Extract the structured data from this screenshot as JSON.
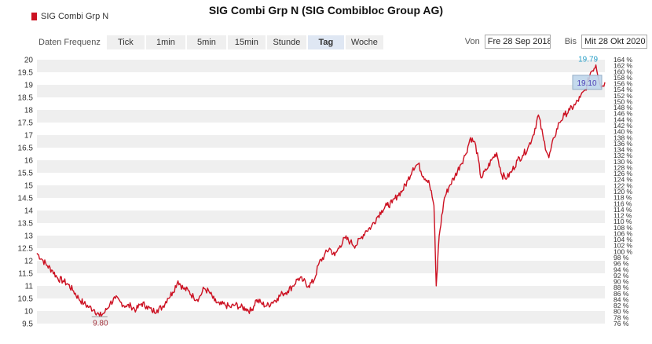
{
  "title": "SIG Combi Grp N (SIG Combibloc Group AG)",
  "legend": {
    "label": "SIG Combi Grp N",
    "color": "#cc1122"
  },
  "toolbar": {
    "freq_label": "Daten Frequenz",
    "buttons": [
      "Tick",
      "1min",
      "5min",
      "15min",
      "Stunde",
      "Tag",
      "Woche"
    ],
    "active": "Tag"
  },
  "range": {
    "from_label": "Von",
    "from": "Fre 28 Sep 2018",
    "to_label": "Bis",
    "to": "Mit 28 Okt 2020"
  },
  "chart_data": {
    "type": "line",
    "x_start": "2018-09-28",
    "x_end": "2020-10-28",
    "ylim": [
      9.5,
      20
    ],
    "y_ticks": [
      9.5,
      10,
      10.5,
      11,
      11.5,
      12,
      12.5,
      13,
      13.5,
      14,
      14.5,
      15,
      15.5,
      16,
      16.5,
      17,
      17.5,
      18,
      18.5,
      19,
      19.5,
      20
    ],
    "y2_ticks": [
      "76 %",
      "78 %",
      "80 %",
      "82 %",
      "84 %",
      "86 %",
      "88 %",
      "90 %",
      "92 %",
      "94 %",
      "96 %",
      "98 %",
      "100 %",
      "102 %",
      "104 %",
      "106 %",
      "108 %",
      "110 %",
      "112 %",
      "114 %",
      "116 %",
      "118 %",
      "120 %",
      "122 %",
      "124 %",
      "126 %",
      "128 %",
      "130 %",
      "132 %",
      "134 %",
      "136 %",
      "138 %",
      "140 %",
      "142 %",
      "144 %",
      "146 %",
      "148 %",
      "150 %",
      "152 %",
      "154 %",
      "156 %",
      "158 %",
      "160 %",
      "162 %",
      "164 %"
    ],
    "y2_lim": [
      76,
      164
    ],
    "grid": true,
    "series": [
      {
        "name": "SIG Combi Grp N",
        "color": "#cc1122",
        "points": [
          [
            "2018-09-28",
            12.3
          ],
          [
            "2018-10-05",
            12.05
          ],
          [
            "2018-10-12",
            11.8
          ],
          [
            "2018-10-19",
            11.6
          ],
          [
            "2018-10-26",
            11.3
          ],
          [
            "2018-11-02",
            11.2
          ],
          [
            "2018-11-09",
            11.05
          ],
          [
            "2018-11-16",
            10.8
          ],
          [
            "2018-11-23",
            10.5
          ],
          [
            "2018-11-30",
            10.3
          ],
          [
            "2018-12-07",
            10.15
          ],
          [
            "2018-12-14",
            10.05
          ],
          [
            "2018-12-21",
            9.8
          ],
          [
            "2018-12-28",
            9.95
          ],
          [
            "2019-01-04",
            10.3
          ],
          [
            "2019-01-11",
            10.5
          ],
          [
            "2019-01-18",
            10.35
          ],
          [
            "2019-01-25",
            10.2
          ],
          [
            "2019-02-01",
            10.2
          ],
          [
            "2019-02-08",
            10.05
          ],
          [
            "2019-02-15",
            10.3
          ],
          [
            "2019-02-22",
            10.2
          ],
          [
            "2019-03-01",
            10.0
          ],
          [
            "2019-03-08",
            10.05
          ],
          [
            "2019-03-15",
            10.15
          ],
          [
            "2019-03-22",
            10.5
          ],
          [
            "2019-03-29",
            10.75
          ],
          [
            "2019-04-05",
            11.2
          ],
          [
            "2019-04-12",
            10.9
          ],
          [
            "2019-04-19",
            10.8
          ],
          [
            "2019-04-26",
            10.55
          ],
          [
            "2019-05-03",
            10.5
          ],
          [
            "2019-05-10",
            10.9
          ],
          [
            "2019-05-17",
            10.75
          ],
          [
            "2019-05-24",
            10.4
          ],
          [
            "2019-05-31",
            10.25
          ],
          [
            "2019-06-07",
            10.25
          ],
          [
            "2019-06-14",
            10.15
          ],
          [
            "2019-06-21",
            10.25
          ],
          [
            "2019-06-28",
            10.15
          ],
          [
            "2019-07-05",
            10.1
          ],
          [
            "2019-07-12",
            10.0
          ],
          [
            "2019-07-19",
            10.45
          ],
          [
            "2019-07-26",
            10.3
          ],
          [
            "2019-08-02",
            10.2
          ],
          [
            "2019-08-09",
            10.35
          ],
          [
            "2019-08-16",
            10.5
          ],
          [
            "2019-08-23",
            10.7
          ],
          [
            "2019-08-30",
            10.8
          ],
          [
            "2019-09-06",
            11.0
          ],
          [
            "2019-09-13",
            11.3
          ],
          [
            "2019-09-20",
            11.2
          ],
          [
            "2019-09-27",
            11.0
          ],
          [
            "2019-10-04",
            11.2
          ],
          [
            "2019-10-11",
            11.9
          ],
          [
            "2019-10-18",
            12.2
          ],
          [
            "2019-10-25",
            12.5
          ],
          [
            "2019-11-01",
            12.2
          ],
          [
            "2019-11-08",
            12.6
          ],
          [
            "2019-11-15",
            12.9
          ],
          [
            "2019-11-22",
            12.75
          ],
          [
            "2019-11-29",
            12.6
          ],
          [
            "2019-12-06",
            12.9
          ],
          [
            "2019-12-13",
            13.2
          ],
          [
            "2019-12-20",
            13.35
          ],
          [
            "2019-12-27",
            13.7
          ],
          [
            "2020-01-03",
            14.0
          ],
          [
            "2020-01-10",
            14.2
          ],
          [
            "2020-01-17",
            14.3
          ],
          [
            "2020-01-24",
            14.6
          ],
          [
            "2020-01-31",
            14.8
          ],
          [
            "2020-02-07",
            15.2
          ],
          [
            "2020-02-14",
            15.7
          ],
          [
            "2020-02-21",
            15.85
          ],
          [
            "2020-02-28",
            15.35
          ],
          [
            "2020-03-06",
            15.2
          ],
          [
            "2020-03-13",
            14.2
          ],
          [
            "2020-03-16",
            11.0
          ],
          [
            "2020-03-20",
            13.0
          ],
          [
            "2020-03-27",
            14.5
          ],
          [
            "2020-04-03",
            15.0
          ],
          [
            "2020-04-10",
            15.35
          ],
          [
            "2020-04-17",
            15.8
          ],
          [
            "2020-04-24",
            16.2
          ],
          [
            "2020-05-01",
            16.9
          ],
          [
            "2020-05-08",
            16.6
          ],
          [
            "2020-05-15",
            15.3
          ],
          [
            "2020-05-22",
            15.6
          ],
          [
            "2020-05-29",
            16.0
          ],
          [
            "2020-06-05",
            16.3
          ],
          [
            "2020-06-12",
            15.4
          ],
          [
            "2020-06-19",
            15.3
          ],
          [
            "2020-06-26",
            15.6
          ],
          [
            "2020-07-03",
            16.0
          ],
          [
            "2020-07-10",
            16.2
          ],
          [
            "2020-07-17",
            16.5
          ],
          [
            "2020-07-24",
            17.0
          ],
          [
            "2020-07-31",
            17.8
          ],
          [
            "2020-08-07",
            16.8
          ],
          [
            "2020-08-14",
            16.1
          ],
          [
            "2020-08-21",
            16.9
          ],
          [
            "2020-08-28",
            17.5
          ],
          [
            "2020-09-04",
            17.8
          ],
          [
            "2020-09-11",
            18.0
          ],
          [
            "2020-09-18",
            18.2
          ],
          [
            "2020-09-25",
            18.5
          ],
          [
            "2020-10-02",
            18.8
          ],
          [
            "2020-10-09",
            19.5
          ],
          [
            "2020-10-16",
            19.79
          ],
          [
            "2020-10-23",
            18.9
          ],
          [
            "2020-10-28",
            19.1
          ]
        ]
      }
    ],
    "annotations": {
      "min": {
        "date": "2018-12-21",
        "value": "9.80"
      },
      "max": {
        "date": "2020-10-16",
        "value": "19.79"
      },
      "last": {
        "date": "2020-10-28",
        "value": "19.10"
      }
    }
  }
}
